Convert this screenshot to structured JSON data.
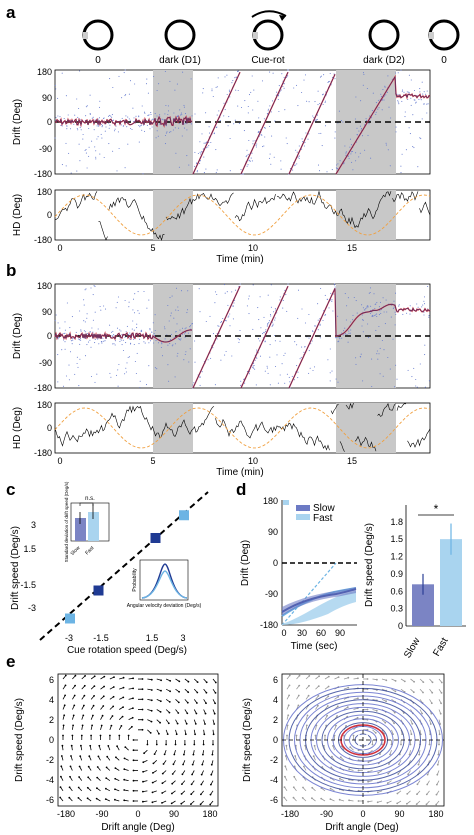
{
  "panels": {
    "a": {
      "label": "a",
      "conditions": [
        "0",
        "dark (D1)",
        "Cue-rot",
        "dark (D2)",
        "0"
      ],
      "drift_ylabel": "Drift (Deg)",
      "drift_yticks": [
        "180",
        "90",
        "0",
        "-90",
        "-180"
      ],
      "hd_ylabel": "HD (Deg)",
      "hd_yticks": [
        "180",
        "0",
        "-180"
      ],
      "xticks": [
        "0",
        "5",
        "10",
        "15"
      ],
      "xlabel": "Time (min)"
    },
    "b": {
      "label": "b",
      "drift_ylabel": "Drift (Deg)",
      "drift_yticks": [
        "180",
        "90",
        "0",
        "-90",
        "-180"
      ],
      "hd_ylabel": "HD (Deg)",
      "hd_yticks": [
        "180",
        "0",
        "-180"
      ],
      "xticks": [
        "0",
        "5",
        "10",
        "15"
      ],
      "xlabel": "Time (min)"
    },
    "c": {
      "label": "c",
      "ylabel": "Drift speed (Deg/s)",
      "xlabel": "Cue rotation speed (Deg/s)",
      "yticks": [
        "3",
        "1.5",
        "-1.5",
        "-3"
      ],
      "xticks": [
        "-3",
        "-1.5",
        "1.5",
        "3"
      ],
      "inset_bar": {
        "ylabel": "Standard deviation of drift speed (Deg/s)",
        "ns": "n.s.",
        "cats": [
          "Slow",
          "Fast"
        ]
      },
      "inset_hist": {
        "ylabel": "Probability",
        "xlabel": "Angular velocity deviation (Deg/s)"
      }
    },
    "d": {
      "label": "d",
      "left_ylabel": "Drift (Deg)",
      "left_yticks": [
        "180",
        "90",
        "0",
        "-90",
        "-180"
      ],
      "left_xticks": [
        "0",
        "30",
        "60",
        "90"
      ],
      "left_xlabel": "Time (sec)",
      "legend": [
        "Slow",
        "Fast"
      ],
      "right_ylabel": "Drift speed (Deg/s)",
      "right_yticks": [
        "1.8",
        "1.5",
        "1.2",
        "0.9",
        "0.6",
        "0.3",
        "0"
      ],
      "right_cats": [
        "Slow",
        "Fast"
      ],
      "sig": "*"
    },
    "e": {
      "label": "e",
      "ylabel": "Drift speed (Deg/s)",
      "xlabel": "Drift angle (Deg)",
      "yticks": [
        "6",
        "4",
        "2",
        "0",
        "-2",
        "-4",
        "-6"
      ],
      "xticks": [
        "-180",
        "-90",
        "0",
        "90",
        "180"
      ]
    }
  },
  "chart_data": [
    {
      "type": "scatter",
      "panel": "a-drift",
      "ylabel": "Drift (Deg)",
      "xlabel": "Time (min)",
      "xlim": [
        0,
        19.5
      ],
      "ylim": [
        -180,
        180
      ],
      "dark_epochs": [
        [
          5,
          7
        ],
        [
          14,
          17
        ]
      ],
      "cue_rotation_epoch": [
        7,
        14
      ]
    },
    {
      "type": "bar",
      "panel": "d-right",
      "categories": [
        "Slow",
        "Fast"
      ],
      "values": [
        0.72,
        1.5
      ],
      "errors": [
        0.18,
        0.27
      ],
      "ylabel": "Drift speed (Deg/s)",
      "ylim": [
        0,
        1.9
      ]
    },
    {
      "type": "scatter",
      "panel": "c",
      "x": [
        -3,
        -1.5,
        1.5,
        3
      ],
      "y": [
        -3,
        -1.4,
        1.6,
        2.9
      ],
      "xlabel": "Cue rotation speed (Deg/s)",
      "ylabel": "Drift speed (Deg/s)"
    }
  ],
  "colors": {
    "dark_shade": "#c8c8c8",
    "scatter_blue": "#6a7fd0",
    "fit_red": "#d0303c",
    "hd_orange": "#f0a040",
    "bar_slow": "#7b84c4",
    "bar_fast": "#a9d4ef",
    "square_dark": "#1f3a93",
    "square_light": "#6cb4e4"
  }
}
